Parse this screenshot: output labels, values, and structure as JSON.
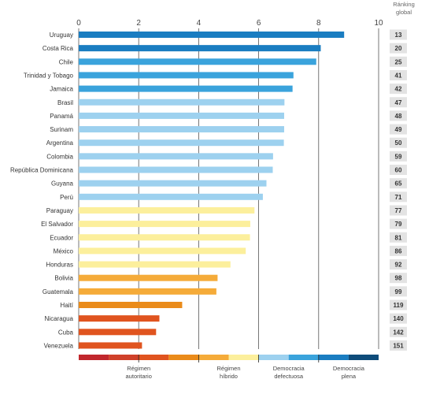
{
  "chart_data": {
    "type": "bar",
    "orientation": "horizontal",
    "xlim": [
      0,
      10
    ],
    "x_ticks": [
      "0",
      "2",
      "4",
      "6",
      "8",
      "10"
    ],
    "rank_header": [
      "Ránking",
      "global"
    ],
    "colors": {
      "plena": "#1a7dc1",
      "defectuosa_alta": "#3aa3dc",
      "defectuosa": "#9dd1ef",
      "hibrido": "#fcef9c",
      "hibrido_bajo": "#f5ab39",
      "autoritario_alto": "#ea8b1a",
      "autoritario": "#e0541f",
      "grid": "#555555"
    },
    "rows": [
      {
        "country": "Uruguay",
        "value": 8.85,
        "rank": "13",
        "color": "plena"
      },
      {
        "country": "Costa Rica",
        "value": 8.07,
        "rank": "20",
        "color": "plena"
      },
      {
        "country": "Chile",
        "value": 7.92,
        "rank": "25",
        "color": "defectuosa_alta"
      },
      {
        "country": "Trinidad y Tobago",
        "value": 7.16,
        "rank": "41",
        "color": "defectuosa_alta"
      },
      {
        "country": "Jamaica",
        "value": 7.13,
        "rank": "42",
        "color": "defectuosa_alta"
      },
      {
        "country": "Brasil",
        "value": 6.86,
        "rank": "47",
        "color": "defectuosa"
      },
      {
        "country": "Panamá",
        "value": 6.85,
        "rank": "48",
        "color": "defectuosa"
      },
      {
        "country": "Surinam",
        "value": 6.85,
        "rank": "49",
        "color": "defectuosa"
      },
      {
        "country": "Argentina",
        "value": 6.84,
        "rank": "50",
        "color": "defectuosa"
      },
      {
        "country": "Colombia",
        "value": 6.48,
        "rank": "59",
        "color": "defectuosa"
      },
      {
        "country": "República Dominicana",
        "value": 6.47,
        "rank": "60",
        "color": "defectuosa"
      },
      {
        "country": "Guyana",
        "value": 6.26,
        "rank": "65",
        "color": "defectuosa"
      },
      {
        "country": "Perú",
        "value": 6.14,
        "rank": "71",
        "color": "defectuosa"
      },
      {
        "country": "Paraguay",
        "value": 5.86,
        "rank": "77",
        "color": "hibrido"
      },
      {
        "country": "El Salvador",
        "value": 5.72,
        "rank": "79",
        "color": "hibrido"
      },
      {
        "country": "Ecuador",
        "value": 5.71,
        "rank": "81",
        "color": "hibrido"
      },
      {
        "country": "México",
        "value": 5.57,
        "rank": "86",
        "color": "hibrido"
      },
      {
        "country": "Honduras",
        "value": 5.06,
        "rank": "92",
        "color": "hibrido"
      },
      {
        "country": "Bolivia",
        "value": 4.63,
        "rank": "98",
        "color": "hibrido_bajo"
      },
      {
        "country": "Guatemala",
        "value": 4.59,
        "rank": "99",
        "color": "hibrido_bajo"
      },
      {
        "country": "Haití",
        "value": 3.45,
        "rank": "119",
        "color": "autoritario_alto"
      },
      {
        "country": "Nicaragua",
        "value": 2.69,
        "rank": "140",
        "color": "autoritario"
      },
      {
        "country": "Cuba",
        "value": 2.58,
        "rank": "142",
        "color": "autoritario"
      },
      {
        "country": "Venezuela",
        "value": 2.11,
        "rank": "151",
        "color": "autoritario"
      }
    ],
    "legend_scale": [
      {
        "from": 0,
        "to": 1,
        "color": "#c1272d"
      },
      {
        "from": 1,
        "to": 2,
        "color": "#d0412a"
      },
      {
        "from": 2,
        "to": 3,
        "color": "#e0541f"
      },
      {
        "from": 3,
        "to": 4,
        "color": "#ea8b1a"
      },
      {
        "from": 4,
        "to": 5,
        "color": "#f5ab39"
      },
      {
        "from": 5,
        "to": 6,
        "color": "#fcef9c"
      },
      {
        "from": 6,
        "to": 7,
        "color": "#9dd1ef"
      },
      {
        "from": 7,
        "to": 8,
        "color": "#3aa3dc"
      },
      {
        "from": 8,
        "to": 9,
        "color": "#1a7dc1"
      },
      {
        "from": 9,
        "to": 10,
        "color": "#0e4c7a"
      }
    ],
    "legend_categories": [
      {
        "lines": [
          "Régimen",
          "autoritario"
        ],
        "at": 2
      },
      {
        "lines": [
          "Régimen",
          "híbrido"
        ],
        "at": 5
      },
      {
        "lines": [
          "Democracia",
          "defectuosa"
        ],
        "at": 7
      },
      {
        "lines": [
          "Democracia",
          "plena"
        ],
        "at": 9
      }
    ]
  }
}
